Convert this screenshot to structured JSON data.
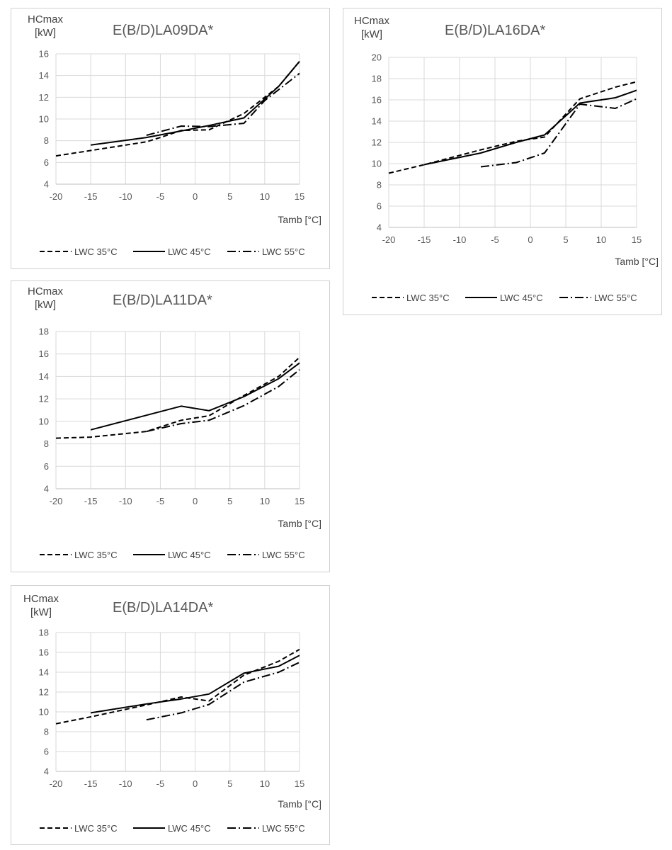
{
  "legend": [
    "LWC 35°C",
    "LWC 45°C",
    "LWC 55°C"
  ],
  "y_label_line1": "HCmax",
  "y_label_line2": "[kW]",
  "x_label": "Tamb [°C]",
  "chart_data": [
    {
      "type": "line",
      "title": "E(B/D)LA09DA*",
      "ylabel": "HCmax [kW]",
      "xlabel": "Tamb [°C]",
      "xlim": [
        -20,
        15
      ],
      "ylim": [
        4,
        16
      ],
      "xticks": [
        -20,
        -15,
        -10,
        -5,
        0,
        5,
        10,
        15
      ],
      "yticks": [
        4,
        6,
        8,
        10,
        12,
        14,
        16
      ],
      "grid": true,
      "legend_position": "bottom",
      "series": [
        {
          "name": "LWC 35°C",
          "style": "dash",
          "points": [
            [
              -20,
              6.6
            ],
            [
              -15,
              7.1
            ],
            [
              -7,
              7.9
            ],
            [
              -5,
              8.3
            ],
            [
              -2,
              8.95
            ],
            [
              2,
              9.0
            ],
            [
              7,
              10.5
            ],
            [
              12,
              13.0
            ],
            [
              15,
              15.3
            ]
          ]
        },
        {
          "name": "LWC 45°C",
          "style": "solid",
          "points": [
            [
              -15,
              7.6
            ],
            [
              -7,
              8.3
            ],
            [
              -2,
              8.9
            ],
            [
              2,
              9.4
            ],
            [
              7,
              10.1
            ],
            [
              12,
              13.0
            ],
            [
              15,
              15.3
            ]
          ]
        },
        {
          "name": "LWC 55°C",
          "style": "dashdot",
          "points": [
            [
              -7,
              8.5
            ],
            [
              -2,
              9.35
            ],
            [
              2,
              9.3
            ],
            [
              7,
              9.6
            ],
            [
              10,
              11.7
            ],
            [
              15,
              14.2
            ]
          ]
        }
      ]
    },
    {
      "type": "line",
      "title": "E(B/D)LA11DA*",
      "ylabel": "HCmax [kW]",
      "xlabel": "Tamb [°C]",
      "xlim": [
        -20,
        15
      ],
      "ylim": [
        4,
        18
      ],
      "xticks": [
        -20,
        -15,
        -10,
        -5,
        0,
        5,
        10,
        15
      ],
      "yticks": [
        4,
        6,
        8,
        10,
        12,
        14,
        16,
        18
      ],
      "grid": true,
      "legend_position": "bottom",
      "series": [
        {
          "name": "LWC 35°C",
          "style": "dash",
          "points": [
            [
              -20,
              8.5
            ],
            [
              -15,
              8.6
            ],
            [
              -7,
              9.1
            ],
            [
              -2,
              10.1
            ],
            [
              2,
              10.5
            ],
            [
              7,
              12.3
            ],
            [
              12,
              14.0
            ],
            [
              15,
              15.7
            ]
          ]
        },
        {
          "name": "LWC 45°C",
          "style": "solid",
          "points": [
            [
              -15,
              9.25
            ],
            [
              -2,
              11.35
            ],
            [
              2,
              10.95
            ],
            [
              7,
              12.2
            ],
            [
              12,
              13.8
            ],
            [
              15,
              15.2
            ]
          ]
        },
        {
          "name": "LWC 55°C",
          "style": "dashdot",
          "points": [
            [
              -7,
              9.1
            ],
            [
              -2,
              9.8
            ],
            [
              2,
              10.1
            ],
            [
              7,
              11.4
            ],
            [
              12,
              13.1
            ],
            [
              15,
              14.6
            ]
          ]
        }
      ]
    },
    {
      "type": "line",
      "title": "E(B/D)LA14DA*",
      "ylabel": "HCmax [kW]",
      "xlabel": "Tamb [°C]",
      "xlim": [
        -20,
        15
      ],
      "ylim": [
        4,
        18
      ],
      "xticks": [
        -20,
        -15,
        -10,
        -5,
        0,
        5,
        10,
        15
      ],
      "yticks": [
        4,
        6,
        8,
        10,
        12,
        14,
        16,
        18
      ],
      "grid": true,
      "legend_position": "bottom",
      "series": [
        {
          "name": "LWC 35°C",
          "style": "dash",
          "points": [
            [
              -20,
              8.8
            ],
            [
              -15,
              9.5
            ],
            [
              -7,
              10.7
            ],
            [
              -2,
              11.5
            ],
            [
              2,
              11.1
            ],
            [
              7,
              13.7
            ],
            [
              12,
              15.1
            ],
            [
              15,
              16.3
            ]
          ]
        },
        {
          "name": "LWC 45°C",
          "style": "solid",
          "points": [
            [
              -15,
              9.9
            ],
            [
              -7,
              10.8
            ],
            [
              -2,
              11.3
            ],
            [
              2,
              11.8
            ],
            [
              7,
              13.9
            ],
            [
              12,
              14.6
            ],
            [
              15,
              15.7
            ]
          ]
        },
        {
          "name": "LWC 55°C",
          "style": "dashdot",
          "points": [
            [
              -7,
              9.2
            ],
            [
              -2,
              9.9
            ],
            [
              2,
              10.75
            ],
            [
              7,
              13.0
            ],
            [
              12,
              14.0
            ],
            [
              15,
              15.0
            ]
          ]
        }
      ]
    },
    {
      "type": "line",
      "title": "E(B/D)LA16DA*",
      "ylabel": "HCmax [kW]",
      "xlabel": "Tamb [°C]",
      "xlim": [
        -20,
        15
      ],
      "ylim": [
        4,
        20
      ],
      "xticks": [
        -20,
        -15,
        -10,
        -5,
        0,
        5,
        10,
        15
      ],
      "yticks": [
        4,
        6,
        8,
        10,
        12,
        14,
        16,
        18,
        20
      ],
      "grid": true,
      "legend_position": "bottom",
      "series": [
        {
          "name": "LWC 35°C",
          "style": "dash",
          "points": [
            [
              -20,
              9.1
            ],
            [
              -15,
              9.9
            ],
            [
              -7,
              11.3
            ],
            [
              -2,
              12.1
            ],
            [
              2,
              12.5
            ],
            [
              7,
              16.1
            ],
            [
              12,
              17.2
            ],
            [
              15,
              17.7
            ]
          ]
        },
        {
          "name": "LWC 45°C",
          "style": "solid",
          "points": [
            [
              -15,
              9.9
            ],
            [
              -7,
              11.0
            ],
            [
              -2,
              12.0
            ],
            [
              2,
              12.7
            ],
            [
              7,
              15.7
            ],
            [
              12,
              16.2
            ],
            [
              15,
              16.9
            ]
          ]
        },
        {
          "name": "LWC 55°C",
          "style": "dashdot",
          "points": [
            [
              -7,
              9.7
            ],
            [
              -2,
              10.1
            ],
            [
              2,
              11.0
            ],
            [
              7,
              15.6
            ],
            [
              12,
              15.2
            ],
            [
              15,
              16.1
            ]
          ]
        }
      ]
    }
  ]
}
